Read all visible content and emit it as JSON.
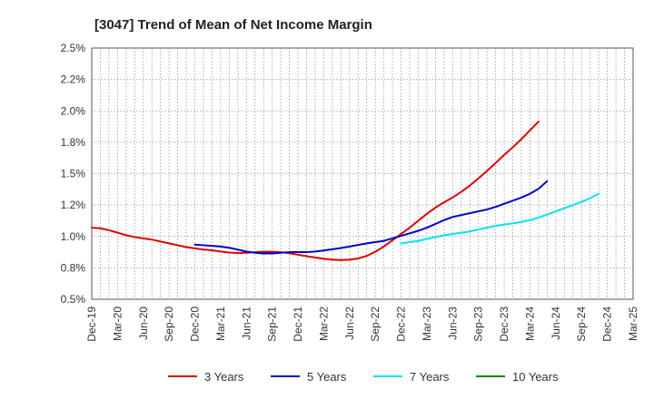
{
  "chart_data": {
    "type": "line",
    "title": "[3047]  Trend of Mean of Net Income Margin",
    "xlabel": "",
    "ylabel": "",
    "x_ticks": [
      "Dec-19",
      "Mar-20",
      "Jun-20",
      "Sep-20",
      "Dec-20",
      "Mar-21",
      "Jun-21",
      "Sep-21",
      "Dec-21",
      "Mar-22",
      "Jun-22",
      "Sep-22",
      "Dec-22",
      "Mar-23",
      "Jun-23",
      "Sep-23",
      "Dec-23",
      "Mar-24",
      "Jun-24",
      "Sep-24",
      "Dec-24",
      "Mar-25"
    ],
    "y_ticks": [
      "0.5%",
      "0.8%",
      "1.0%",
      "1.2%",
      "1.5%",
      "1.8%",
      "2.0%",
      "2.2%",
      "2.5%"
    ],
    "ylim": [
      0.5,
      2.5
    ],
    "grid": true,
    "legend_position": "bottom",
    "series": [
      {
        "name": "3 Years",
        "color": "#dd0000",
        "start_index": 0,
        "values": [
          1.07,
          1.065,
          1.05,
          1.03,
          1.01,
          0.995,
          0.985,
          0.975,
          0.96,
          0.945,
          0.93,
          0.915,
          0.905,
          0.895,
          0.89,
          0.88,
          0.872,
          0.868,
          0.87,
          0.875,
          0.878,
          0.878,
          0.875,
          0.866,
          0.855,
          0.843,
          0.832,
          0.822,
          0.815,
          0.812,
          0.815,
          0.825,
          0.845,
          0.878,
          0.92,
          0.97,
          1.02,
          1.07,
          1.125,
          1.18,
          1.23,
          1.272,
          1.31,
          1.355,
          1.405,
          1.462,
          1.522,
          1.585,
          1.65,
          1.71,
          1.775,
          1.845,
          1.915
        ]
      },
      {
        "name": "5 Years",
        "color": "#0000cc",
        "start_index": 12,
        "values": [
          0.935,
          0.93,
          0.925,
          0.92,
          0.91,
          0.895,
          0.88,
          0.87,
          0.865,
          0.865,
          0.87,
          0.875,
          0.875,
          0.875,
          0.88,
          0.888,
          0.898,
          0.908,
          0.92,
          0.932,
          0.945,
          0.955,
          0.965,
          0.985,
          1.005,
          1.025,
          1.045,
          1.07,
          1.1,
          1.13,
          1.155,
          1.17,
          1.185,
          1.2,
          1.215,
          1.235,
          1.26,
          1.285,
          1.31,
          1.34,
          1.38,
          1.44
        ]
      },
      {
        "name": "7 Years",
        "color": "#00e5ee",
        "start_index": 36,
        "values": [
          0.945,
          0.955,
          0.965,
          0.98,
          0.995,
          1.01,
          1.02,
          1.03,
          1.04,
          1.055,
          1.07,
          1.085,
          1.095,
          1.105,
          1.115,
          1.13,
          1.15,
          1.175,
          1.2,
          1.225,
          1.25,
          1.275,
          1.305,
          1.34
        ]
      },
      {
        "name": "10 Years",
        "color": "#008800",
        "start_index": 0,
        "values": []
      }
    ]
  }
}
